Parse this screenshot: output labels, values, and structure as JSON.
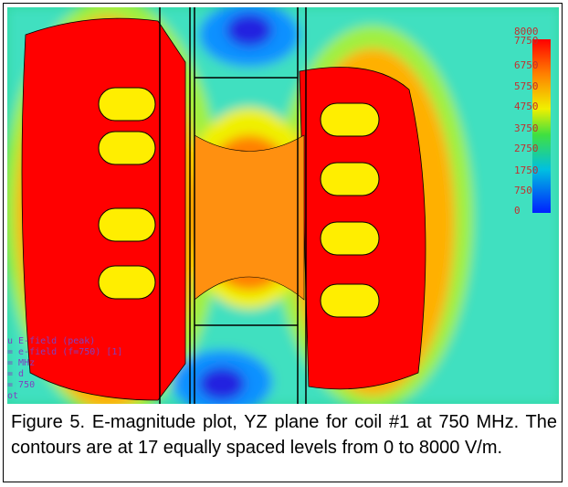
{
  "figure": {
    "colorbar": {
      "labels": [
        "8000",
        "7750",
        "6750",
        "5750",
        "4750",
        "3750",
        "2750",
        "1750",
        "750",
        "0"
      ]
    },
    "overlay_lines": [
      "u E-field (peak)",
      "= e-field (f=750) [1]",
      "= MHz",
      "= d",
      "= 750",
      "ot"
    ],
    "caption": "Figure 5. E-magnitude plot, YZ plane for coil #1 at 750 MHz.  The contours are at 17 equally spaced levels from 0 to 8000 V/m."
  }
}
